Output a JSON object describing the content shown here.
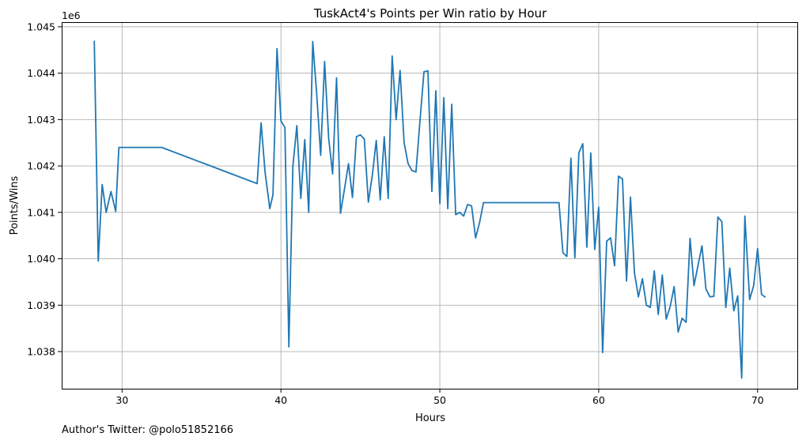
{
  "chart_data": {
    "type": "line",
    "title": "TuskAct4's Points per Win ratio by Hour",
    "xlabel": "Hours",
    "ylabel": "Points/Wins",
    "offset_label": "1e6",
    "xlim": [
      26.2,
      72.5
    ],
    "ylim": [
      1037.2,
      1045.1
    ],
    "x_ticks": [
      30,
      40,
      50,
      60,
      70
    ],
    "y_ticks": [
      1038,
      1039,
      1040,
      1041,
      1042,
      1043,
      1044,
      1045
    ],
    "y_tick_labels": [
      "1.038",
      "1.039",
      "1.040",
      "1.041",
      "1.042",
      "1.043",
      "1.044",
      "1.045"
    ],
    "grid": true,
    "series": [
      {
        "color": "#1f77b4",
        "x": [
          28.25,
          28.5,
          28.75,
          29.0,
          29.3,
          29.6,
          29.8,
          32.5,
          38.5,
          38.75,
          39.0,
          39.3,
          39.5,
          39.75,
          40.0,
          40.25,
          40.5,
          40.75,
          41.0,
          41.25,
          41.5,
          41.75,
          42.0,
          42.25,
          42.5,
          42.75,
          43.0,
          43.25,
          43.5,
          43.75,
          44.0,
          44.25,
          44.5,
          44.75,
          45.0,
          45.25,
          45.5,
          45.75,
          46.0,
          46.25,
          46.5,
          46.75,
          47.0,
          47.25,
          47.5,
          47.75,
          48.0,
          48.25,
          48.5,
          48.75,
          49.0,
          49.25,
          49.5,
          49.75,
          50.0,
          50.25,
          50.5,
          50.75,
          51.0,
          51.25,
          51.5,
          51.75,
          52.0,
          52.25,
          52.5,
          52.75,
          57.5,
          57.75,
          58.0,
          58.25,
          58.5,
          58.75,
          59.0,
          59.25,
          59.5,
          59.75,
          60.0,
          60.25,
          60.5,
          60.75,
          61.0,
          61.25,
          61.5,
          61.75,
          62.0,
          62.25,
          62.5,
          62.75,
          63.0,
          63.25,
          63.5,
          63.75,
          64.0,
          64.25,
          64.5,
          64.75,
          65.0,
          65.25,
          65.5,
          65.75,
          66.0,
          66.25,
          66.5,
          66.75,
          67.0,
          67.25,
          67.5,
          67.75,
          68.0,
          68.25,
          68.5,
          68.75,
          69.0,
          69.2,
          69.5,
          69.75,
          70.0,
          70.25,
          70.5
        ],
        "y": [
          1044.7,
          1039.95,
          1041.6,
          1041.0,
          1041.45,
          1041.02,
          1042.4,
          1042.4,
          1041.62,
          1042.93,
          1041.87,
          1041.08,
          1041.38,
          1044.53,
          1042.97,
          1042.83,
          1038.1,
          1042.0,
          1042.87,
          1041.3,
          1042.57,
          1041.0,
          1044.68,
          1043.55,
          1042.23,
          1044.25,
          1042.6,
          1041.83,
          1043.9,
          1040.98,
          1041.5,
          1042.05,
          1041.32,
          1042.63,
          1042.67,
          1042.58,
          1041.22,
          1041.8,
          1042.55,
          1041.27,
          1042.63,
          1041.3,
          1044.37,
          1043.0,
          1044.06,
          1042.5,
          1042.05,
          1041.9,
          1041.87,
          1042.96,
          1044.03,
          1044.05,
          1041.45,
          1043.62,
          1041.19,
          1043.47,
          1041.08,
          1043.33,
          1040.95,
          1041.0,
          1040.92,
          1041.17,
          1041.14,
          1040.45,
          1040.78,
          1041.21,
          1041.21,
          1040.13,
          1040.05,
          1042.17,
          1040.02,
          1042.28,
          1042.48,
          1040.25,
          1042.28,
          1040.2,
          1041.11,
          1037.98,
          1040.38,
          1040.45,
          1039.85,
          1041.78,
          1041.72,
          1039.52,
          1041.33,
          1039.7,
          1039.18,
          1039.57,
          1039.0,
          1038.95,
          1039.74,
          1038.8,
          1039.65,
          1038.7,
          1038.97,
          1039.4,
          1038.42,
          1038.72,
          1038.63,
          1040.44,
          1039.42,
          1039.86,
          1040.28,
          1039.35,
          1039.18,
          1039.19,
          1040.9,
          1040.8,
          1038.95,
          1039.8,
          1038.88,
          1039.2,
          1037.43,
          1040.92,
          1039.12,
          1039.42,
          1040.22,
          1039.23,
          1039.17
        ]
      }
    ]
  },
  "footer": {
    "author": "Author's Twitter: @polo51852166"
  }
}
